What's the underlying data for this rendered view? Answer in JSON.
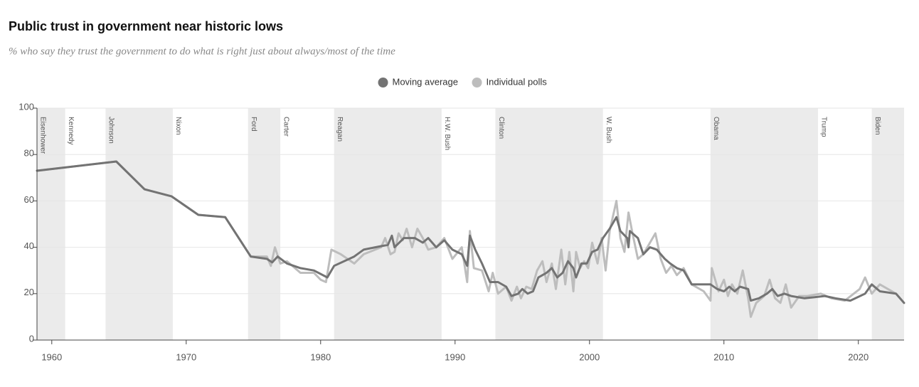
{
  "chart_data": {
    "type": "line",
    "title": "Public trust in government near historic lows",
    "subtitle": "% who say they trust the government to do what is right just about always/most of the time",
    "legend": "top",
    "grid": true,
    "xlim": [
      1958.9,
      2023.4
    ],
    "xticks": [
      1960,
      1970,
      1980,
      1990,
      2000,
      2010,
      2020
    ],
    "ylim": [
      0,
      100
    ],
    "yticks": [
      0,
      20,
      40,
      60,
      80,
      100
    ],
    "presidents": [
      {
        "name": "Eisenhower",
        "start": 1958.9,
        "end": 1961
      },
      {
        "name": "Kennedy",
        "start": 1961,
        "end": 1964
      },
      {
        "name": "Johnson",
        "start": 1964,
        "end": 1969
      },
      {
        "name": "Nixon",
        "start": 1969,
        "end": 1974.6
      },
      {
        "name": "Ford",
        "start": 1974.6,
        "end": 1977
      },
      {
        "name": "Carter",
        "start": 1977,
        "end": 1981
      },
      {
        "name": "Reagan",
        "start": 1981,
        "end": 1989
      },
      {
        "name": "H.W. Bush",
        "start": 1989,
        "end": 1993
      },
      {
        "name": "Clinton",
        "start": 1993,
        "end": 2001
      },
      {
        "name": "W. Bush",
        "start": 2001,
        "end": 2009
      },
      {
        "name": "Obama",
        "start": 2009,
        "end": 2017
      },
      {
        "name": "Trump",
        "start": 2017,
        "end": 2021
      },
      {
        "name": "Biden",
        "start": 2021,
        "end": 2023.4
      }
    ],
    "series": [
      {
        "name": "Individual polls",
        "color": "#bdbdbd",
        "x": [
          1958.9,
          1964.8,
          1966.9,
          1968.9,
          1970.9,
          1972.9,
          1974.8,
          1976.0,
          1976.3,
          1976.6,
          1977.0,
          1977.5,
          1978.5,
          1979.5,
          1980.0,
          1980.4,
          1980.8,
          1981.5,
          1982.5,
          1983.2,
          1984.5,
          1984.8,
          1985.2,
          1985.5,
          1985.8,
          1986.1,
          1986.4,
          1986.8,
          1987.2,
          1987.6,
          1988.0,
          1988.6,
          1989.2,
          1989.8,
          1990.5,
          1990.9,
          1991.1,
          1991.4,
          1992.0,
          1992.5,
          1992.8,
          1993.2,
          1993.8,
          1994.2,
          1994.6,
          1994.9,
          1995.3,
          1995.7,
          1996.1,
          1996.5,
          1996.8,
          1997.2,
          1997.5,
          1997.9,
          1998.2,
          1998.5,
          1998.8,
          1999.0,
          1999.3,
          1999.6,
          1999.9,
          2000.2,
          2000.6,
          2000.9,
          2001.2,
          2001.5,
          2002.0,
          2002.3,
          2002.6,
          2002.9,
          2003.2,
          2003.6,
          2004.0,
          2004.5,
          2004.9,
          2005.3,
          2005.7,
          2006.1,
          2006.5,
          2007.0,
          2007.6,
          2008.5,
          2009.0,
          2009.1,
          2009.6,
          2010.0,
          2010.3,
          2010.6,
          2011.0,
          2011.4,
          2011.8,
          2012.0,
          2012.4,
          2013.0,
          2013.4,
          2013.8,
          2014.2,
          2014.6,
          2015.0,
          2015.6,
          2016.2,
          2017.2,
          2018.0,
          2019.0,
          2020.1,
          2020.5,
          2021.0,
          2021.6,
          2022.8,
          2023.4
        ],
        "values": [
          73,
          77,
          65,
          62,
          54,
          53,
          36,
          36,
          32,
          40,
          33,
          34,
          29,
          29,
          26,
          25,
          39,
          37,
          33,
          37,
          40,
          44,
          37,
          38,
          46,
          43,
          48,
          40,
          48,
          44,
          39,
          40,
          44,
          35,
          40,
          25,
          47,
          31,
          30,
          21,
          29,
          20,
          23,
          17,
          23,
          18,
          23,
          22,
          30,
          34,
          25,
          33,
          22,
          39,
          24,
          38,
          21,
          38,
          31,
          34,
          31,
          42,
          33,
          44,
          30,
          47,
          60,
          44,
          38,
          55,
          46,
          35,
          37,
          42,
          46,
          35,
          29,
          32,
          28,
          31,
          24,
          21,
          17,
          31,
          21,
          26,
          19,
          24,
          20,
          30,
          18,
          10,
          16,
          19,
          26,
          18,
          16,
          24,
          14,
          19,
          19,
          20,
          18,
          17,
          22,
          27,
          20,
          24,
          20,
          16
        ]
      },
      {
        "name": "Moving average",
        "color": "#737373",
        "x": [
          1958.9,
          1964.8,
          1966.9,
          1968.9,
          1970.9,
          1972.9,
          1974.8,
          1976.0,
          1976.4,
          1976.8,
          1977.5,
          1978.5,
          1979.5,
          1980.5,
          1981.0,
          1982.5,
          1983.2,
          1984.5,
          1985.0,
          1985.3,
          1985.5,
          1986.2,
          1987.0,
          1987.6,
          1988.0,
          1988.6,
          1989.2,
          1989.8,
          1990.5,
          1990.9,
          1991.1,
          1991.5,
          1992.0,
          1992.6,
          1993.2,
          1993.8,
          1994.2,
          1994.7,
          1995.0,
          1995.4,
          1995.8,
          1996.2,
          1996.8,
          1997.2,
          1997.6,
          1998.0,
          1998.4,
          1998.8,
          1999.0,
          1999.4,
          1999.8,
          2000.2,
          2000.6,
          2001.0,
          2001.5,
          2002.0,
          2002.3,
          2002.8,
          2002.9,
          2003.0,
          2003.6,
          2004.0,
          2004.5,
          2005.0,
          2005.6,
          2006.0,
          2006.5,
          2007.0,
          2007.6,
          2009.0,
          2009.5,
          2010.0,
          2010.4,
          2010.8,
          2011.2,
          2011.8,
          2012.0,
          2012.6,
          2013.2,
          2013.6,
          2014.0,
          2014.5,
          2015.0,
          2016.0,
          2017.5,
          2018.3,
          2019.4,
          2020.5,
          2021.0,
          2021.6,
          2022.8,
          2023.4
        ],
        "values": [
          73,
          77,
          65,
          62,
          54,
          53,
          36,
          35,
          33.5,
          36,
          33,
          31,
          30,
          27,
          32,
          36,
          39,
          40.5,
          41,
          45,
          40,
          44,
          44,
          42,
          44,
          40,
          43,
          39,
          37,
          32,
          45,
          39,
          33,
          25,
          25,
          23,
          19,
          20,
          22,
          20,
          21,
          27,
          29,
          31,
          27,
          29,
          34,
          31,
          27,
          33,
          33,
          38,
          39,
          44,
          48,
          53,
          47,
          44,
          40,
          47,
          44,
          37,
          40,
          39,
          35,
          33,
          31,
          30,
          24,
          24,
          22,
          21,
          23,
          21,
          23,
          22,
          17,
          18,
          20,
          22,
          19,
          20,
          19,
          18,
          19,
          18,
          17,
          20,
          24,
          21,
          20,
          16
        ]
      }
    ]
  }
}
